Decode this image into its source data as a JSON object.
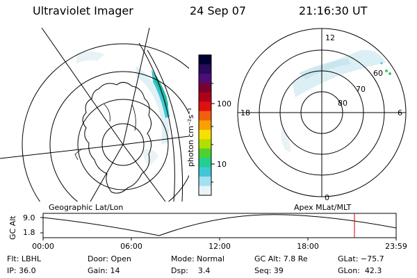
{
  "header": {
    "instrument": "Ultraviolet Imager",
    "date": "24 Sep 07",
    "time": "21:16:30 UT"
  },
  "colorbar": {
    "unit_label": "photon cm⁻²s⁻¹",
    "tick_labels": [
      "100",
      "10"
    ],
    "colors": [
      "#000033",
      "#2a0a5a",
      "#4b0d7a",
      "#7a0030",
      "#b00018",
      "#e01010",
      "#f06010",
      "#f8a000",
      "#f8e000",
      "#b0e000",
      "#50d030",
      "#20d090",
      "#40c8d8",
      "#a0e0f0",
      "#e8f4f8"
    ]
  },
  "geo_map": {
    "label": "Geographic Lat/Lon",
    "aurora_color": "#30c8d0",
    "land_outline": "Antarctica"
  },
  "polar_plot": {
    "label": "Apex MLat/MLT",
    "ring_labels": [
      "60",
      "70",
      "80"
    ],
    "mlt_labels": [
      "12",
      "18",
      "6",
      "0"
    ]
  },
  "altitude_plot": {
    "ylabel": "GC Alt",
    "ytick_labels": [
      "9.0",
      "1.8"
    ],
    "xtick_labels": [
      "00:00",
      "06:00",
      "12:00",
      "18:00",
      "23:59"
    ],
    "current_time_marker_color": "#cc0000"
  },
  "info": {
    "flt": "Flt: LBHL",
    "ip": "IP: 36.0",
    "door": "Door: Open",
    "gain": "Gain: 14",
    "mode": "Mode: Normal",
    "dsp": "Dsp:    3.4",
    "gc_alt": "GC Alt: 7.8 Re",
    "seq": "Seq: 39",
    "glat": "GLat: −75.7",
    "glon": "GLon:  42.3"
  }
}
